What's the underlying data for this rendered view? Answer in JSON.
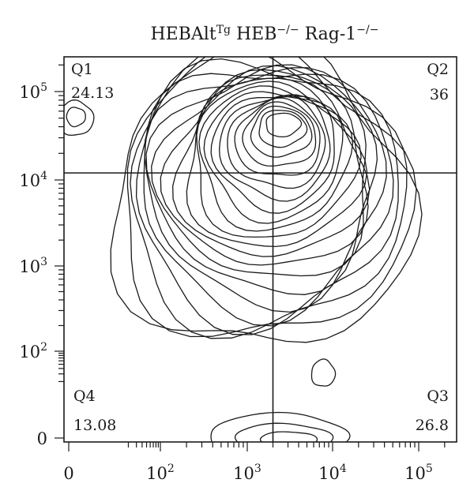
{
  "chart_data": {
    "type": "contour",
    "title": {
      "part1": "HEBAlt",
      "part1_sup": "Tg",
      "part2": " HEB",
      "part2_sup": "−/−",
      "part3": " Rag-1",
      "part3_sup": "−/−"
    },
    "xlabel": "",
    "ylabel": "",
    "x_ticks": [
      {
        "value": 0,
        "base": "0",
        "exp": ""
      },
      {
        "value": 100,
        "base": "10",
        "exp": "2"
      },
      {
        "value": 1000,
        "base": "10",
        "exp": "3"
      },
      {
        "value": 10000,
        "base": "10",
        "exp": "4"
      },
      {
        "value": 100000,
        "base": "10",
        "exp": "5"
      }
    ],
    "y_ticks": [
      {
        "value": 0,
        "base": "0",
        "exp": ""
      },
      {
        "value": 100,
        "base": "10",
        "exp": "2"
      },
      {
        "value": 1000,
        "base": "10",
        "exp": "3"
      },
      {
        "value": 10000,
        "base": "10",
        "exp": "4"
      },
      {
        "value": 100000,
        "base": "10",
        "exp": "5"
      }
    ],
    "scale": "biexponential",
    "gate": {
      "x": 2000,
      "y": 12000
    },
    "quadrants": [
      {
        "label": "Q1",
        "value": "24.13",
        "position": "top-left"
      },
      {
        "label": "Q2",
        "value": "36",
        "position": "top-right"
      },
      {
        "label": "Q3",
        "value": "26.8",
        "position": "bottom-right"
      },
      {
        "label": "Q4",
        "value": "13.08",
        "position": "bottom-left"
      }
    ],
    "grid": false,
    "legend": "none"
  }
}
